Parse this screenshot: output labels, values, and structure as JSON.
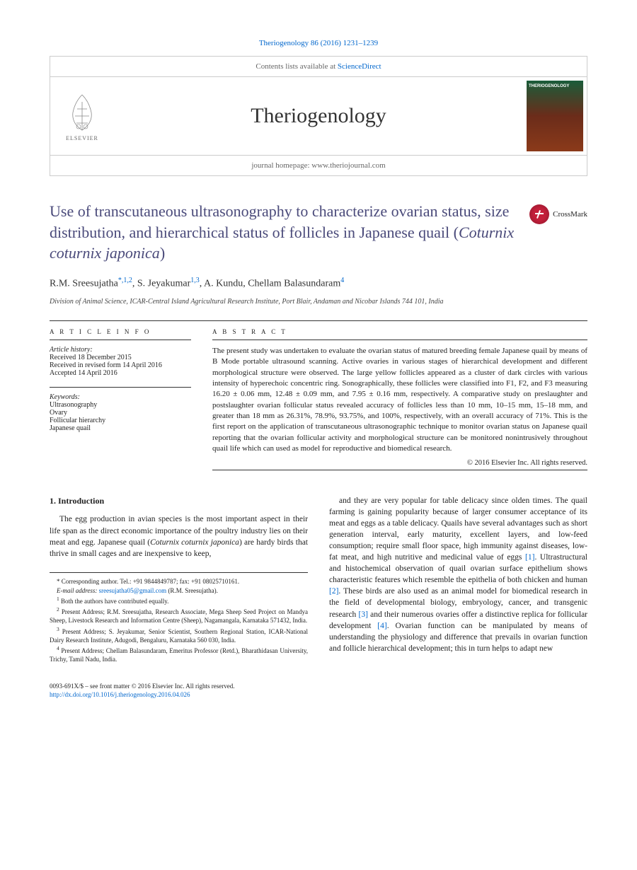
{
  "citation": "Theriogenology 86 (2016) 1231–1239",
  "header": {
    "contents_text": "Contents lists available at ",
    "contents_link": "ScienceDirect",
    "journal_name": "Theriogenology",
    "homepage_label": "journal homepage: ",
    "homepage_url": "www.theriojournal.com",
    "elsevier_label": "ELSEVIER",
    "cover_title": "THERIOGENOLOGY"
  },
  "crossmark_label": "CrossMark",
  "title": "Use of transcutaneous ultrasonography to characterize ovarian status, size distribution, and hierarchical status of follicles in Japanese quail (<em>Coturnix coturnix japonica</em>)",
  "authors_html": "R.M. Sreesujatha<sup>*,1,2</sup>, S. Jeyakumar<sup>1,3</sup>, A. Kundu, Chellam Balasundaram<sup>4</sup>",
  "affiliation": "Division of Animal Science, ICAR-Central Island Agricultural Research Institute, Port Blair, Andaman and Nicobar Islands 744 101, India",
  "article_info": {
    "head": "A R T I C L E   I N F O",
    "history_label": "Article history:",
    "history": [
      "Received 18 December 2015",
      "Received in revised form 14 April 2016",
      "Accepted 14 April 2016"
    ],
    "keywords_label": "Keywords:",
    "keywords": [
      "Ultrasonography",
      "Ovary",
      "Follicular hierarchy",
      "Japanese quail"
    ]
  },
  "abstract": {
    "head": "A B S T R A C T",
    "text": "The present study was undertaken to evaluate the ovarian status of matured breeding female Japanese quail by means of B Mode portable ultrasound scanning. Active ovaries in various stages of hierarchical development and different morphological structure were observed. The large yellow follicles appeared as a cluster of dark circles with various intensity of hyperechoic concentric ring. Sonographically, these follicles were classified into F1, F2, and F3 measuring 16.20 ± 0.06 mm, 12.48 ± 0.09 mm, and 7.95 ± 0.16 mm, respectively. A comparative study on preslaughter and postslaughter ovarian follicular status revealed accuracy of follicles less than 10 mm, 10–15 mm, 15–18 mm, and greater than 18 mm as 26.31%, 78.9%, 93.75%, and 100%, respectively, with an overall accuracy of 71%. This is the first report on the application of transcutaneous ultrasonographic technique to monitor ovarian status on Japanese quail reporting that the ovarian follicular activity and morphological structure can be monitored nonintrusively throughout quail life which can used as model for reproductive and biomedical research.",
    "copyright": "© 2016 Elsevier Inc. All rights reserved."
  },
  "intro": {
    "head": "1. Introduction",
    "col1": "The egg production in avian species is the most important aspect in their life span as the direct economic importance of the poultry industry lies on their meat and egg. Japanese quail (<em>Coturnix coturnix japonica</em>) are hardy birds that thrive in small cages and are inexpensive to keep,",
    "col2": "and they are very popular for table delicacy since olden times. The quail farming is gaining popularity because of larger consumer acceptance of its meat and eggs as a table delicacy. Quails have several advantages such as short generation interval, early maturity, excellent layers, and low-feed consumption; require small floor space, high immunity against diseases, low-fat meat, and high nutritive and medicinal value of eggs <a href='#'>[1]</a>. Ultrastructural and histochemical observation of quail ovarian surface epithelium shows characteristic features which resemble the epithelia of both chicken and human <a href='#'>[2]</a>. These birds are also used as an animal model for biomedical research in the field of developmental biology, embryology, cancer, and transgenic research <a href='#'>[3]</a> and their numerous ovaries offer a distinctive replica for follicular development <a href='#'>[4]</a>. Ovarian function can be manipulated by means of understanding the physiology and difference that prevails in ovarian function and follicle hierarchical development; this in turn helps to adapt new"
  },
  "footnotes": {
    "corr": "* Corresponding author. Tel.: +91 9844849787; fax: +91 08025710161.",
    "email_label": "E-mail address: ",
    "email": "sreesujatha05@gmail.com",
    "email_tail": " (R.M. Sreesujatha).",
    "n1": "Both the authors have contributed equally.",
    "n2": "Present Address; R.M. Sreesujatha, Research Associate, Mega Sheep Seed Project on Mandya Sheep, Livestock Research and Information Centre (Sheep), Nagamangala, Karnataka 571432, India.",
    "n3": "Present Address; S. Jeyakumar, Senior Scientist, Southern Regional Station, ICAR-National Dairy Research Institute, Adugodi, Bengaluru, Karnataka 560 030, India.",
    "n4": "Present Address; Chellam Balasundaram, Emeritus Professor (Retd.), Bharathidasan University, Trichy, Tamil Nadu, India."
  },
  "footer": {
    "issn": "0093-691X/$ – see front matter © 2016 Elsevier Inc. All rights reserved.",
    "doi": "http://dx.doi.org/10.1016/j.theriogenology.2016.04.026"
  },
  "colors": {
    "link": "#0066cc",
    "title": "#4a4a7a",
    "border": "#cccccc",
    "rule": "#333333"
  }
}
